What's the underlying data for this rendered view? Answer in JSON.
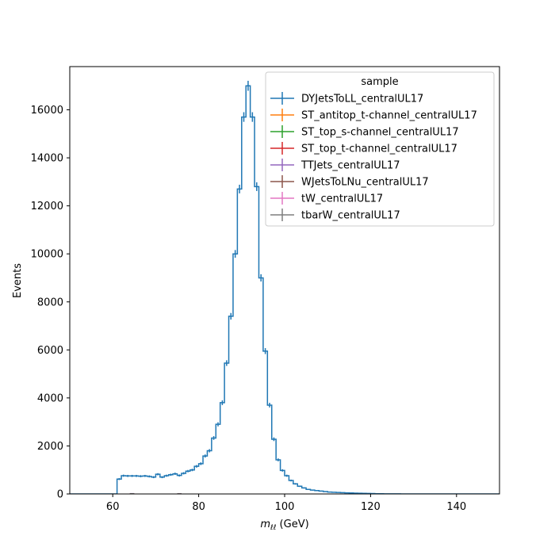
{
  "chart_data": {
    "type": "histogram",
    "xlabel_main": "m",
    "xlabel_sub": "ℓℓ",
    "xlabel_unit": " (GeV)",
    "ylabel": "Events",
    "xlim": [
      50,
      150
    ],
    "ylim": [
      0,
      17800
    ],
    "xticks": [
      60,
      80,
      100,
      120,
      140
    ],
    "yticks": [
      0,
      2000,
      4000,
      6000,
      8000,
      10000,
      12000,
      14000,
      16000
    ],
    "legend_title": "sample",
    "legend_placement": "top-right",
    "bin_edges": [
      50,
      51,
      52,
      53,
      54,
      55,
      56,
      57,
      58,
      59,
      60,
      61,
      62,
      63,
      64,
      65,
      66,
      67,
      68,
      69,
      70,
      71,
      72,
      73,
      74,
      75,
      76,
      77,
      78,
      79,
      80,
      81,
      82,
      83,
      84,
      85,
      86,
      87,
      88,
      89,
      90,
      91,
      92,
      93,
      94,
      95,
      96,
      97,
      98,
      99,
      100,
      101,
      102,
      103,
      104,
      105,
      106,
      107,
      108,
      109,
      110,
      111,
      112,
      113,
      114,
      115,
      116,
      117,
      118,
      119,
      120,
      121,
      122,
      123,
      124,
      125,
      126,
      127,
      128,
      129,
      130,
      131,
      132,
      133,
      134,
      135,
      136,
      137,
      138,
      139,
      140,
      141,
      142,
      143,
      144,
      145,
      146,
      147,
      148,
      149,
      150
    ],
    "series": [
      {
        "name": "DYJetsToLL_centralUL17",
        "color": "#1f77b4",
        "values": [
          0,
          0,
          0,
          0,
          0,
          0,
          0,
          0,
          0,
          0,
          0,
          620,
          760,
          750,
          750,
          750,
          740,
          750,
          730,
          700,
          820,
          700,
          760,
          800,
          840,
          770,
          860,
          950,
          1000,
          1150,
          1260,
          1580,
          1800,
          2330,
          2900,
          3800,
          5450,
          7400,
          10000,
          12700,
          15700,
          17000,
          15700,
          12800,
          9000,
          5950,
          3700,
          2280,
          1420,
          980,
          760,
          560,
          420,
          320,
          250,
          190,
          160,
          140,
          120,
          100,
          80,
          70,
          60,
          55,
          45,
          40,
          35,
          30,
          25,
          20,
          15,
          10,
          8,
          6,
          5,
          4,
          3,
          2,
          2,
          1,
          1,
          1,
          1,
          0,
          0,
          0,
          0,
          0,
          0,
          0,
          0,
          0,
          0,
          0,
          0,
          0,
          0,
          0,
          0,
          0
        ]
      },
      {
        "name": "ST_antitop_t-channel_centralUL17",
        "color": "#ff7f0e",
        "bins": [
          [
            64,
            65,
            4
          ],
          [
            75,
            76,
            3
          ]
        ]
      },
      {
        "name": "ST_top_s-channel_centralUL17",
        "color": "#2ca02c",
        "bins": []
      },
      {
        "name": "ST_top_t-channel_centralUL17",
        "color": "#d62728",
        "bins": [
          [
            64,
            65,
            5
          ],
          [
            75,
            76,
            4
          ]
        ]
      },
      {
        "name": "TTJets_centralUL17",
        "color": "#9467bd",
        "bins": [
          [
            64,
            65,
            12
          ],
          [
            75,
            76,
            10
          ]
        ]
      },
      {
        "name": "WJetsToLNu_centralUL17",
        "color": "#8c564b",
        "bins": []
      },
      {
        "name": "tW_centralUL17",
        "color": "#e377c2",
        "bins": [
          [
            64,
            65,
            8
          ],
          [
            75,
            76,
            7
          ]
        ]
      },
      {
        "name": "tbarW_centralUL17",
        "color": "#7f7f7f",
        "bins": [
          [
            64,
            65,
            8
          ],
          [
            75,
            76,
            7
          ]
        ]
      }
    ]
  }
}
